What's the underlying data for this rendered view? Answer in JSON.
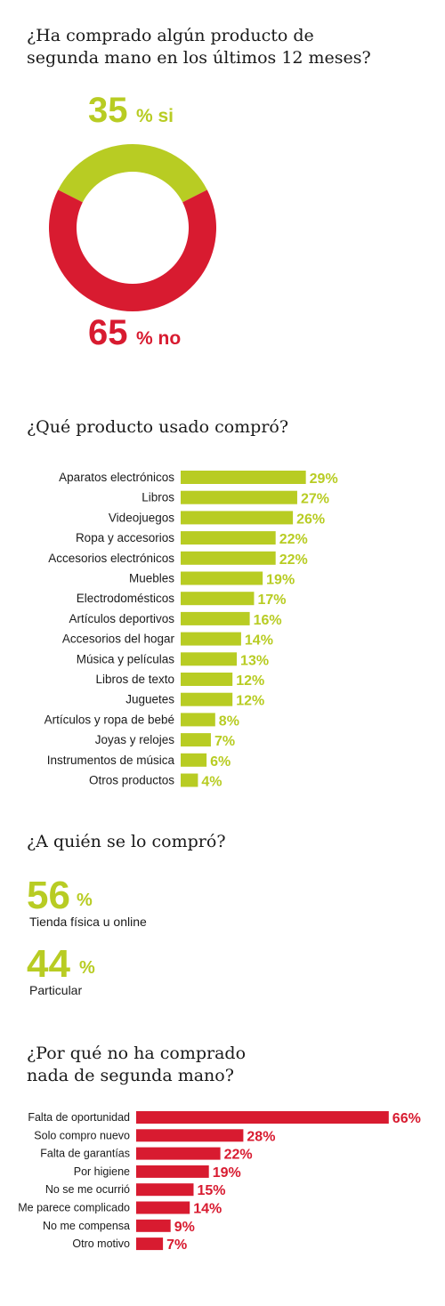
{
  "colors": {
    "green": "#b8cc23",
    "red": "#d81b30"
  },
  "q1": {
    "title_line1": "¿Ha comprado algún producto de",
    "title_line2": "segunda mano en los últimos 12 meses?",
    "yes_value": "35",
    "yes_suffix": "% si",
    "no_value": "65",
    "no_suffix": "% no"
  },
  "q2": {
    "title": "¿Qué producto usado compró?"
  },
  "q3": {
    "title": "¿A quién se lo compró?",
    "items": [
      {
        "value": "56",
        "unit": "%",
        "label": "Tienda física u online"
      },
      {
        "value": "44",
        "unit": "%",
        "label": "Particular"
      }
    ]
  },
  "q4": {
    "title_line1": "¿Por qué no ha comprado",
    "title_line2": "nada de segunda mano?"
  },
  "chart_data": [
    {
      "type": "pie",
      "categories": [
        "si",
        "no"
      ],
      "values": [
        35,
        65
      ],
      "colors": [
        "#b8cc23",
        "#d81b30"
      ]
    },
    {
      "type": "bar",
      "orientation": "horizontal",
      "title": "¿Qué producto usado compró?",
      "categories": [
        "Aparatos electrónicos",
        "Libros",
        "Videojuegos",
        "Ropa y accesorios",
        "Accesorios electrónicos",
        "Muebles",
        "Electrodomésticos",
        "Artículos deportivos",
        "Accesorios del hogar",
        "Música y películas",
        "Libros de texto",
        "Juguetes",
        "Artículos y ropa de bebé",
        "Joyas y relojes",
        "Instrumentos de música",
        "Otros productos"
      ],
      "values": [
        29,
        27,
        26,
        22,
        22,
        19,
        17,
        16,
        14,
        13,
        12,
        12,
        8,
        7,
        6,
        4
      ],
      "unit": "%",
      "color": "#b8cc23"
    },
    {
      "type": "bar",
      "title": "¿A quién se lo compró?",
      "categories": [
        "Tienda física u online",
        "Particular"
      ],
      "values": [
        56,
        44
      ],
      "unit": "%"
    },
    {
      "type": "bar",
      "orientation": "horizontal",
      "title": "¿Por qué no ha comprado nada de segunda mano?",
      "categories": [
        "Falta de oportunidad",
        "Solo compro nuevo",
        "Falta de garantías",
        "Por higiene",
        "No se me ocurrió",
        "Me parece complicado",
        "No me compensa",
        "Otro motivo"
      ],
      "values": [
        66,
        28,
        22,
        19,
        15,
        14,
        9,
        7
      ],
      "unit": "%",
      "color": "#d81b30"
    }
  ]
}
